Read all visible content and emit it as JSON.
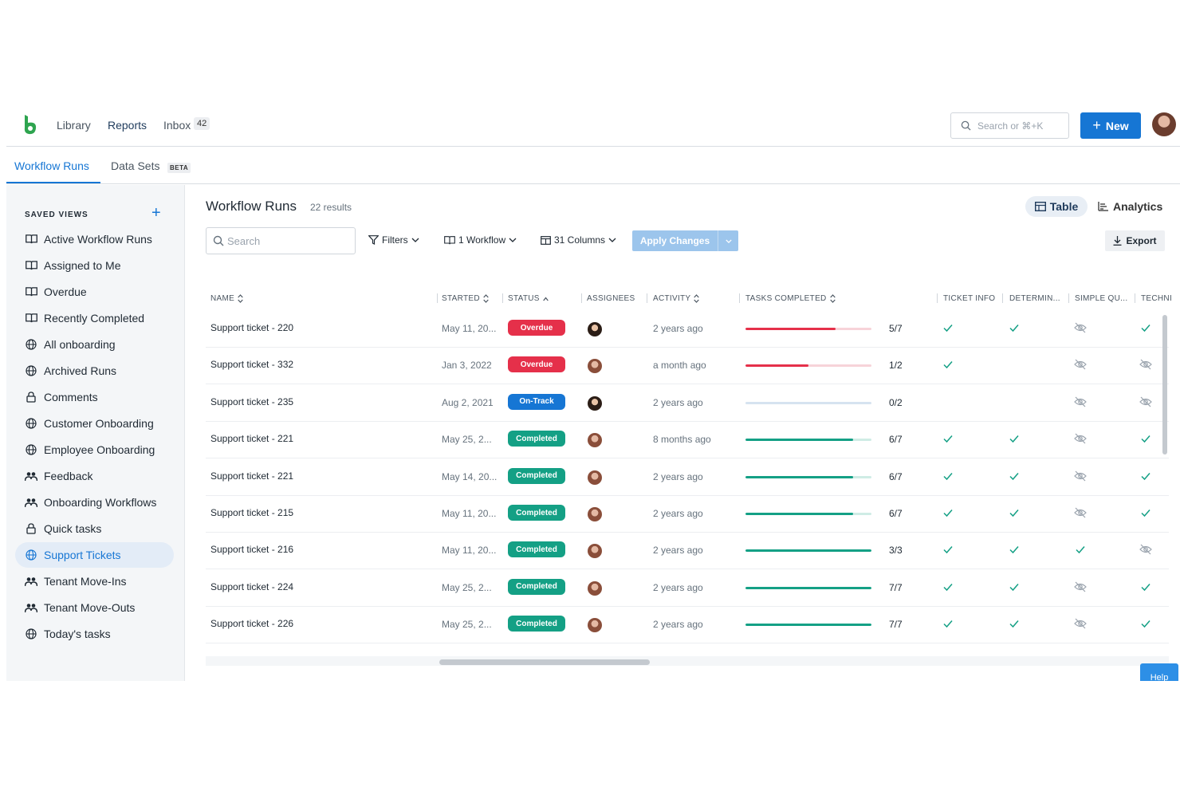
{
  "nav": {
    "links": [
      "Library",
      "Reports",
      "Inbox"
    ],
    "inbox_count": "42",
    "search_placeholder": "Search or ⌘+K",
    "new_label": "New"
  },
  "subtabs": {
    "workflow_runs": "Workflow Runs",
    "data_sets": "Data Sets",
    "beta": "BETA"
  },
  "sidebar": {
    "heading": "SAVED VIEWS",
    "items": [
      {
        "label": "Active Workflow Runs",
        "icon": "book-icon"
      },
      {
        "label": "Assigned to Me",
        "icon": "book-icon"
      },
      {
        "label": "Overdue",
        "icon": "book-icon"
      },
      {
        "label": "Recently Completed",
        "icon": "book-icon"
      },
      {
        "label": "All onboarding",
        "icon": "globe-icon"
      },
      {
        "label": "Archived Runs",
        "icon": "globe-icon"
      },
      {
        "label": "Comments",
        "icon": "lock-icon"
      },
      {
        "label": "Customer Onboarding",
        "icon": "globe-icon"
      },
      {
        "label": "Employee Onboarding",
        "icon": "globe-icon"
      },
      {
        "label": "Feedback",
        "icon": "users-icon"
      },
      {
        "label": "Onboarding Workflows",
        "icon": "users-icon"
      },
      {
        "label": "Quick tasks",
        "icon": "lock-icon"
      },
      {
        "label": "Support Tickets",
        "icon": "globe-icon",
        "active": true
      },
      {
        "label": "Tenant Move-Ins",
        "icon": "users-icon"
      },
      {
        "label": "Tenant Move-Outs",
        "icon": "users-icon"
      },
      {
        "label": "Today's tasks",
        "icon": "globe-icon"
      }
    ]
  },
  "main": {
    "title": "Workflow Runs",
    "results": "22 results",
    "view_table": "Table",
    "view_analytics": "Analytics",
    "search_placeholder": "Search",
    "filters": "Filters",
    "workflow": "1 Workflow",
    "columns": "31 Columns",
    "apply": "Apply Changes",
    "export": "Export"
  },
  "table": {
    "headers": [
      "NAME",
      "STARTED",
      "STATUS",
      "ASSIGNEES",
      "ACTIVITY",
      "TASKS COMPLETED",
      "TICKET INFO",
      "DETERMIN...",
      "SIMPLE QU...",
      "TECHNI"
    ],
    "rows": [
      {
        "name": "Support ticket - 220",
        "started": "May 11, 20...",
        "status": "Overdue",
        "activity": "2 years ago",
        "done": 5,
        "total": 7,
        "frac": "5/7",
        "checks": [
          "check",
          "check",
          "hidden",
          "check"
        ]
      },
      {
        "name": "Support ticket - 332",
        "started": "Jan 3, 2022",
        "status": "Overdue",
        "activity": "a month ago",
        "done": 1,
        "total": 2,
        "frac": "1/2",
        "checks": [
          "check",
          "",
          "hidden",
          "hidden"
        ]
      },
      {
        "name": "Support ticket - 235",
        "started": "Aug 2, 2021",
        "status": "On-Track",
        "activity": "2 years ago",
        "done": 0,
        "total": 2,
        "frac": "0/2",
        "checks": [
          "",
          "",
          "hidden",
          "hidden"
        ]
      },
      {
        "name": "Support ticket - 221",
        "started": "May 25, 2...",
        "status": "Completed",
        "activity": "8 months ago",
        "done": 6,
        "total": 7,
        "frac": "6/7",
        "checks": [
          "check",
          "check",
          "hidden",
          "check"
        ]
      },
      {
        "name": "Support ticket - 221",
        "started": "May 14, 20...",
        "status": "Completed",
        "activity": "2 years ago",
        "done": 6,
        "total": 7,
        "frac": "6/7",
        "checks": [
          "check",
          "check",
          "hidden",
          "check"
        ]
      },
      {
        "name": "Support ticket - 215",
        "started": "May 11, 20...",
        "status": "Completed",
        "activity": "2 years ago",
        "done": 6,
        "total": 7,
        "frac": "6/7",
        "checks": [
          "check",
          "check",
          "hidden",
          "check"
        ]
      },
      {
        "name": "Support ticket - 216",
        "started": "May 11, 20...",
        "status": "Completed",
        "activity": "2 years ago",
        "done": 3,
        "total": 3,
        "frac": "3/3",
        "checks": [
          "check",
          "check",
          "check",
          "hidden"
        ]
      },
      {
        "name": "Support ticket - 224",
        "started": "May 25, 2...",
        "status": "Completed",
        "activity": "2 years ago",
        "done": 7,
        "total": 7,
        "frac": "7/7",
        "checks": [
          "check",
          "check",
          "hidden",
          "check"
        ]
      },
      {
        "name": "Support ticket - 226",
        "started": "May 25, 2...",
        "status": "Completed",
        "activity": "2 years ago",
        "done": 7,
        "total": 7,
        "frac": "7/7",
        "checks": [
          "check",
          "check",
          "hidden",
          "check"
        ]
      }
    ]
  },
  "colors": {
    "overdue": "#e5304a",
    "on_track": "#1676d4",
    "completed": "#14a085",
    "brand": "#1676d4"
  },
  "help_label": "Help"
}
